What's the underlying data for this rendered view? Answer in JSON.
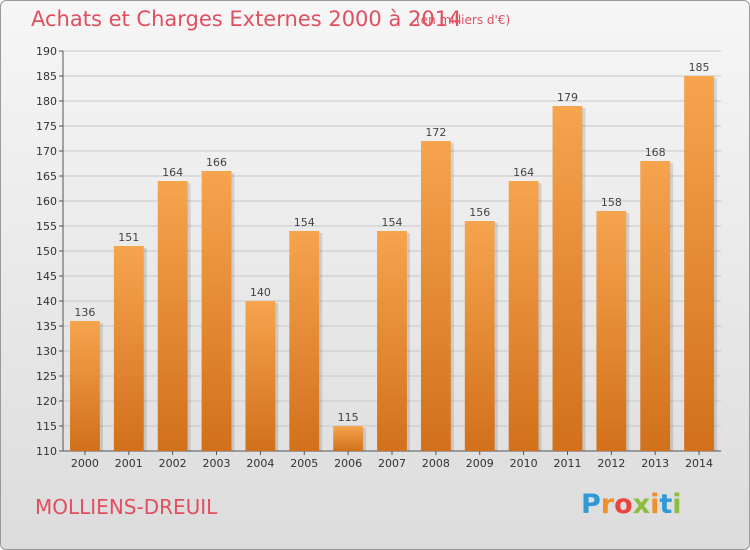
{
  "header": {
    "title": "Achats et Charges Externes 2000 à 2014",
    "subtitle": "(en milliers d'€)"
  },
  "footer": {
    "commune": "MOLLIENS-DREUIL",
    "brand": "Proxiti"
  },
  "colors": {
    "title": "#e04f5f",
    "bar_light": "#f6a44e",
    "bar_dark": "#d2701b",
    "logo_letters": [
      "#2f9ad6",
      "#f0902a",
      "#e8453c",
      "#8cbd3f",
      "#f0902a",
      "#2f9ad6",
      "#8cbd3f"
    ]
  },
  "chart_data": {
    "type": "bar",
    "title": "Achats et Charges Externes 2000 à 2014",
    "subtitle": "(en milliers d'€)",
    "xlabel": "",
    "ylabel": "",
    "categories": [
      "2000",
      "2001",
      "2002",
      "2003",
      "2004",
      "2005",
      "2006",
      "2007",
      "2008",
      "2009",
      "2010",
      "2011",
      "2012",
      "2013",
      "2014"
    ],
    "values": [
      136,
      151,
      164,
      166,
      140,
      154,
      115,
      154,
      172,
      156,
      164,
      179,
      158,
      168,
      185
    ],
    "ylim": [
      110,
      190
    ],
    "ytick_step": 5,
    "grid": "horizontal",
    "legend": "none"
  }
}
